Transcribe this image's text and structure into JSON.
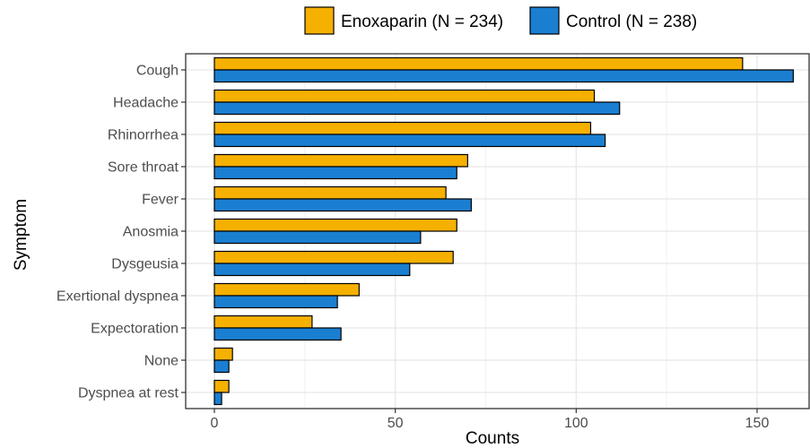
{
  "chart_data": {
    "type": "bar",
    "orientation": "horizontal",
    "xlabel": "Counts",
    "ylabel": "Symptom",
    "xlim": [
      -8,
      163
    ],
    "xticks": [
      0,
      50,
      100,
      150
    ],
    "grid": true,
    "legend_position": "top",
    "categories": [
      "Cough",
      "Headache",
      "Rhinorrhea",
      "Sore throat",
      "Fever",
      "Anosmia",
      "Dysgeusia",
      "Exertional dyspnea",
      "Expectoration",
      "None",
      "Dyspnea at rest"
    ],
    "series": [
      {
        "name": "Enoxaparin (N = 234)",
        "color": "#f5b000",
        "values": [
          146,
          105,
          104,
          70,
          64,
          67,
          66,
          40,
          27,
          5,
          4
        ]
      },
      {
        "name": "Control (N = 238)",
        "color": "#1a7fd1",
        "values": [
          160,
          112,
          108,
          67,
          71,
          57,
          54,
          34,
          35,
          4,
          2
        ]
      }
    ]
  }
}
